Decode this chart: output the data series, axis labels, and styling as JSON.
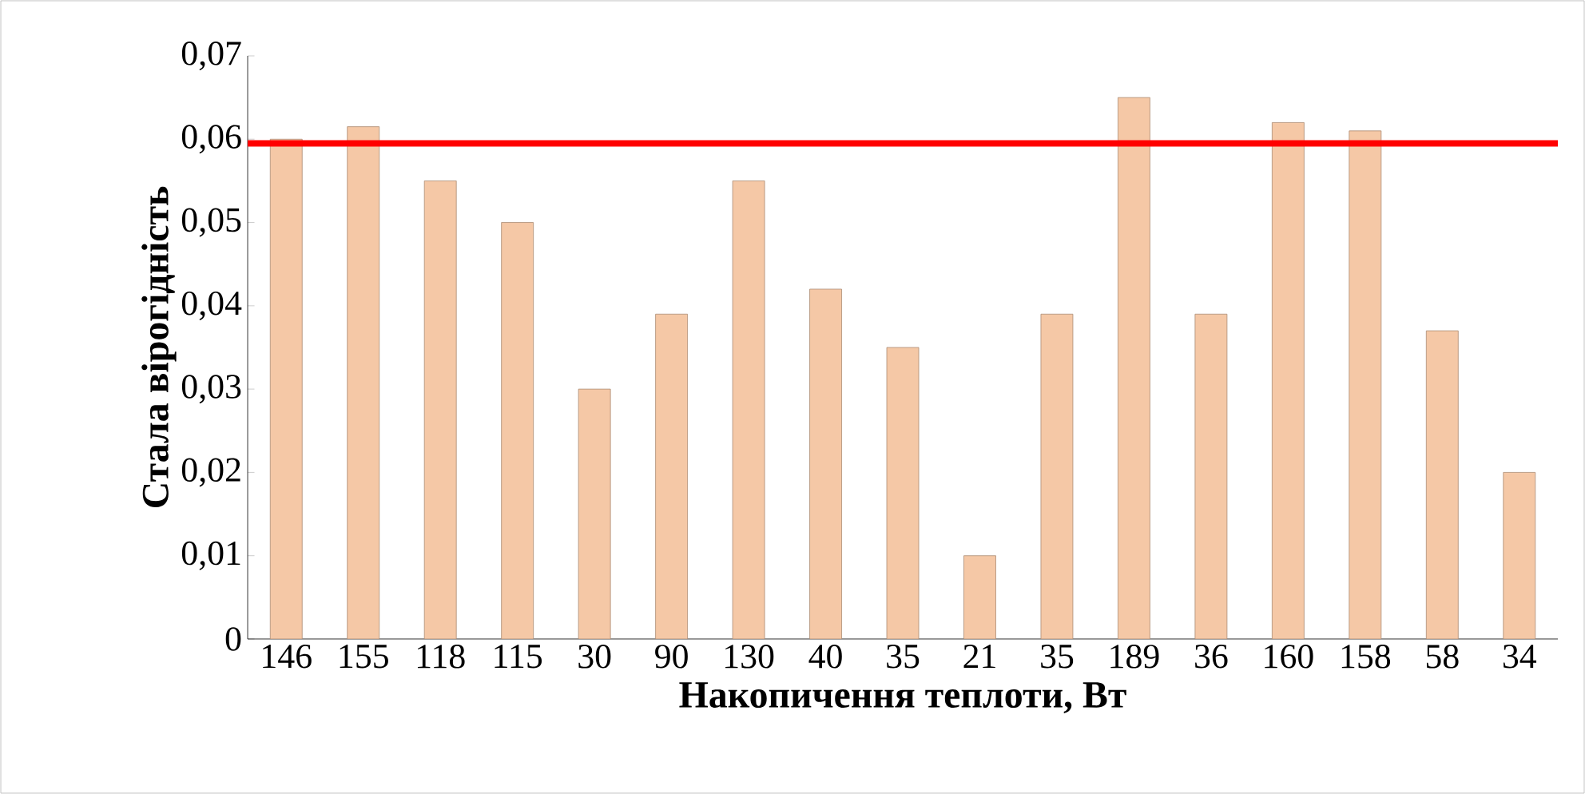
{
  "chart_data": {
    "type": "bar",
    "xlabel": "Накопичення теплоти, Вт",
    "ylabel": "Стала вірогідність",
    "categories": [
      "146",
      "155",
      "118",
      "115",
      "30",
      "90",
      "130",
      "40",
      "35",
      "21",
      "35",
      "189",
      "36",
      "160",
      "158",
      "58",
      "34"
    ],
    "values": [
      0.06,
      0.0615,
      0.055,
      0.05,
      0.03,
      0.039,
      0.055,
      0.042,
      0.035,
      0.01,
      0.039,
      0.065,
      0.039,
      0.062,
      0.061,
      0.037,
      0.02
    ],
    "color": "#f5c8a6",
    "ylim": [
      0,
      0.07
    ],
    "yticks": [
      0,
      {
        "value": 0.01,
        "label": "0,01"
      },
      {
        "value": 0.02,
        "label": "0,02"
      },
      {
        "value": 0.03,
        "label": "0,03"
      },
      {
        "value": 0.04,
        "label": "0,04"
      },
      {
        "value": 0.05,
        "label": "0,05"
      },
      {
        "value": 0.06,
        "label": "0,06"
      },
      {
        "value": 0.07,
        "label": "0,07"
      }
    ],
    "ref_lines": [
      {
        "axis": "y",
        "value": 0.0595,
        "color": "#ff0000"
      }
    ]
  }
}
